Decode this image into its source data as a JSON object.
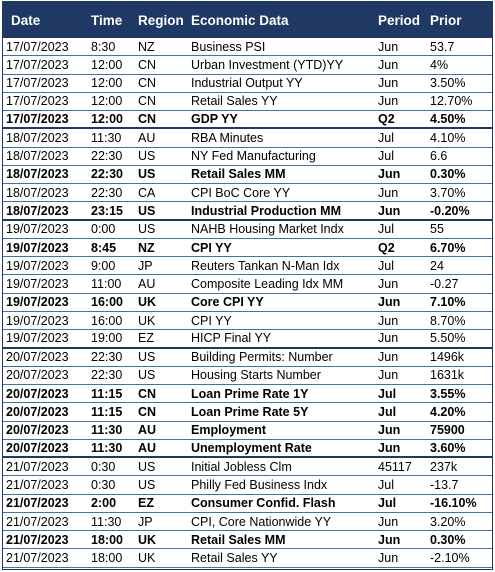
{
  "header": {
    "date": "Date",
    "time": "Time",
    "region": "Region",
    "econ": "Economic Data",
    "period": "Period",
    "prior": "Prior"
  },
  "rows": [
    {
      "date": "17/07/2023",
      "time": "8:30",
      "region": "NZ",
      "econ": "Business PSI",
      "period": "Jun",
      "prior": "53.7",
      "bold": false,
      "end": false
    },
    {
      "date": "17/07/2023",
      "time": "12:00",
      "region": "CN",
      "econ": "Urban Investment (YTD)YY",
      "period": "Jun",
      "prior": "4%",
      "bold": false,
      "end": false
    },
    {
      "date": "17/07/2023",
      "time": "12:00",
      "region": "CN",
      "econ": "Industrial Output YY",
      "period": "Jun",
      "prior": "3.50%",
      "bold": false,
      "end": false
    },
    {
      "date": "17/07/2023",
      "time": "12:00",
      "region": "CN",
      "econ": "Retail Sales YY",
      "period": "Jun",
      "prior": "12.70%",
      "bold": false,
      "end": false
    },
    {
      "date": "17/07/2023",
      "time": "12:00",
      "region": "CN",
      "econ": "GDP YY",
      "period": "Q2",
      "prior": "4.50%",
      "bold": true,
      "end": true
    },
    {
      "date": "18/07/2023",
      "time": "11:30",
      "region": "AU",
      "econ": "RBA Minutes",
      "period": "Jul",
      "prior": "4.10%",
      "bold": false,
      "end": false
    },
    {
      "date": "18/07/2023",
      "time": "22:30",
      "region": "US",
      "econ": "NY Fed Manufacturing",
      "period": "Jul",
      "prior": "6.6",
      "bold": false,
      "end": false
    },
    {
      "date": "18/07/2023",
      "time": "22:30",
      "region": "US",
      "econ": "Retail Sales MM",
      "period": "Jun",
      "prior": "0.30%",
      "bold": true,
      "end": false
    },
    {
      "date": "18/07/2023",
      "time": "22:30",
      "region": "CA",
      "econ": "CPI BoC Core YY",
      "period": "Jun",
      "prior": "3.70%",
      "bold": false,
      "end": false
    },
    {
      "date": "18/07/2023",
      "time": "23:15",
      "region": "US",
      "econ": "Industrial Production MM",
      "period": "Jun",
      "prior": "-0.20%",
      "bold": true,
      "end": true
    },
    {
      "date": "19/07/2023",
      "time": "0:00",
      "region": "US",
      "econ": "NAHB Housing Market Indx",
      "period": "Jul",
      "prior": "55",
      "bold": false,
      "end": false
    },
    {
      "date": "19/07/2023",
      "time": "8:45",
      "region": "NZ",
      "econ": "CPI YY",
      "period": "Q2",
      "prior": "6.70%",
      "bold": true,
      "end": false
    },
    {
      "date": "19/07/2023",
      "time": "9:00",
      "region": "JP",
      "econ": "Reuters Tankan N-Man Idx",
      "period": "Jul",
      "prior": "24",
      "bold": false,
      "end": false
    },
    {
      "date": "19/07/2023",
      "time": "11:00",
      "region": "AU",
      "econ": "Composite Leading Idx MM",
      "period": "Jun",
      "prior": "-0.27",
      "bold": false,
      "end": false
    },
    {
      "date": "19/07/2023",
      "time": "16:00",
      "region": "UK",
      "econ": "Core CPI YY",
      "period": "Jun",
      "prior": "7.10%",
      "bold": true,
      "end": false
    },
    {
      "date": "19/07/2023",
      "time": "16:00",
      "region": "UK",
      "econ": "CPI YY",
      "period": "Jun",
      "prior": "8.70%",
      "bold": false,
      "end": false
    },
    {
      "date": "19/07/2023",
      "time": "19:00",
      "region": "EZ",
      "econ": "HICP Final YY",
      "period": "Jun",
      "prior": "5.50%",
      "bold": false,
      "end": true
    },
    {
      "date": "20/07/2023",
      "time": "22:30",
      "region": "US",
      "econ": "Building Permits: Number",
      "period": "Jun",
      "prior": "1496k",
      "bold": false,
      "end": false
    },
    {
      "date": "20/07/2023",
      "time": "22:30",
      "region": "US",
      "econ": "Housing Starts Number",
      "period": "Jun",
      "prior": "1631k",
      "bold": false,
      "end": false
    },
    {
      "date": "20/07/2023",
      "time": "11:15",
      "region": "CN",
      "econ": "Loan Prime Rate 1Y",
      "period": "Jul",
      "prior": "3.55%",
      "bold": true,
      "end": false
    },
    {
      "date": "20/07/2023",
      "time": "11:15",
      "region": "CN",
      "econ": "Loan Prime Rate 5Y",
      "period": "Jul",
      "prior": "4.20%",
      "bold": true,
      "end": false
    },
    {
      "date": "20/07/2023",
      "time": "11:30",
      "region": "AU",
      "econ": "Employment",
      "period": "Jun",
      "prior": "75900",
      "bold": true,
      "end": false
    },
    {
      "date": "20/07/2023",
      "time": "11:30",
      "region": "AU",
      "econ": "Unemployment Rate",
      "period": "Jun",
      "prior": "3.60%",
      "bold": true,
      "end": true
    },
    {
      "date": "21/07/2023",
      "time": "0:30",
      "region": "US",
      "econ": "Initial Jobless Clm",
      "period": "45117",
      "prior": "237k",
      "bold": false,
      "end": false
    },
    {
      "date": "21/07/2023",
      "time": "0:30",
      "region": "US",
      "econ": "Philly Fed Business Indx",
      "period": "Jul",
      "prior": "-13.7",
      "bold": false,
      "end": false
    },
    {
      "date": "21/07/2023",
      "time": "2:00",
      "region": "EZ",
      "econ": "Consumer Confid. Flash",
      "period": "Jul",
      "prior": "-16.10%",
      "bold": true,
      "end": false
    },
    {
      "date": "21/07/2023",
      "time": "11:30",
      "region": "JP",
      "econ": "CPI, Core Nationwide YY",
      "period": "Jun",
      "prior": "3.20%",
      "bold": false,
      "end": false
    },
    {
      "date": "21/07/2023",
      "time": "18:00",
      "region": "UK",
      "econ": "Retail Sales MM",
      "period": "Jun",
      "prior": "0.30%",
      "bold": true,
      "end": false
    },
    {
      "date": "21/07/2023",
      "time": "18:00",
      "region": "UK",
      "econ": "Retail Sales YY",
      "period": "Jun",
      "prior": "-2.10%",
      "bold": false,
      "end": false
    }
  ]
}
